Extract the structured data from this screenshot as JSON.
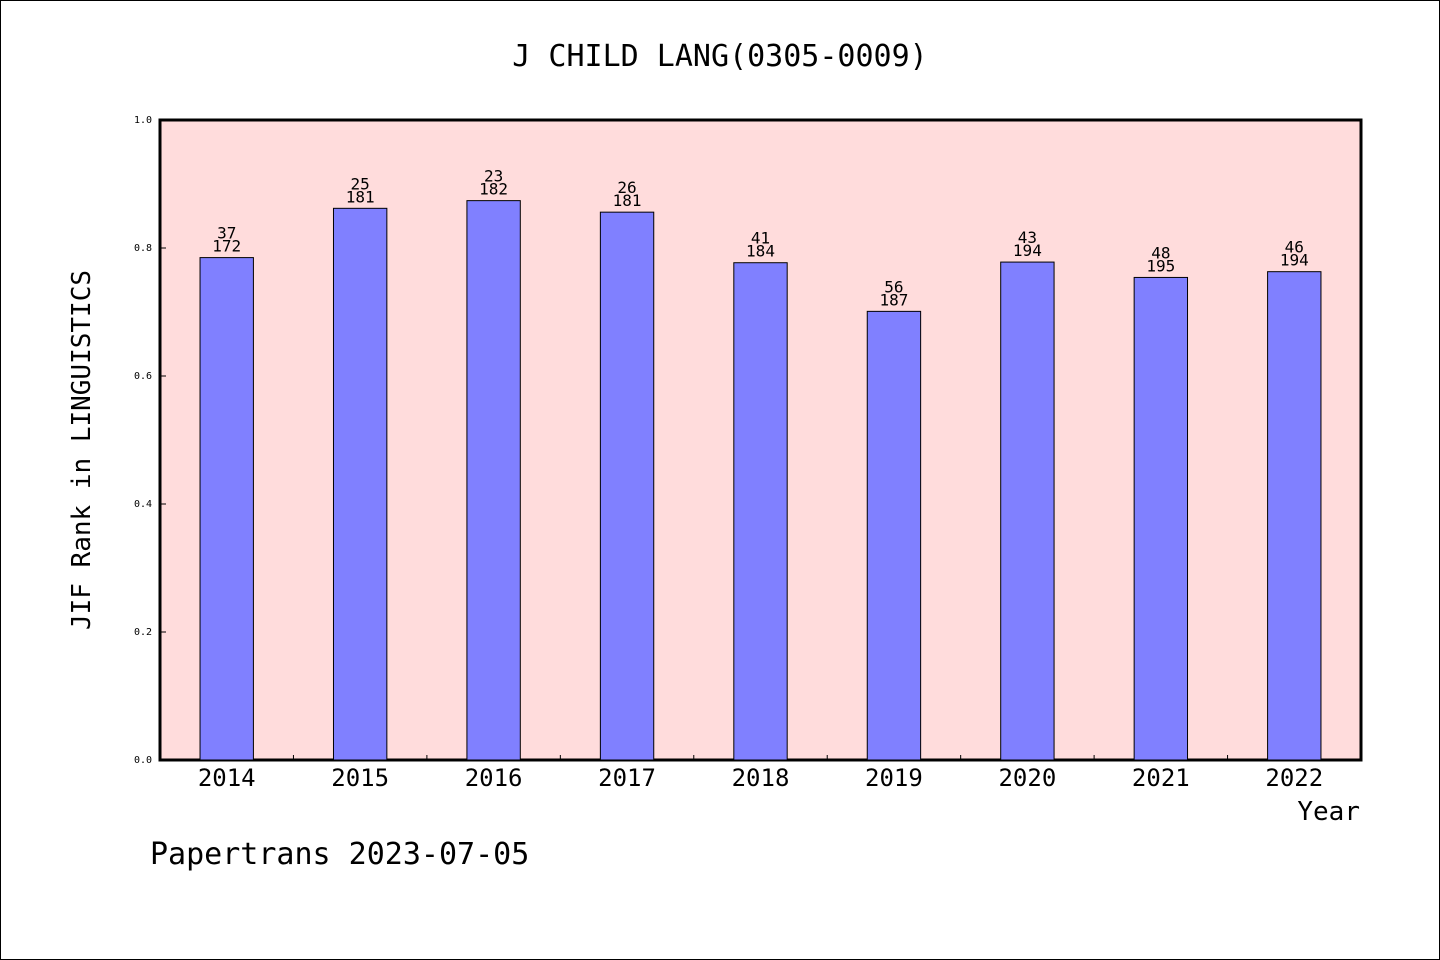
{
  "chart_data": {
    "type": "bar",
    "title": "J CHILD LANG(0305-0009)",
    "xlabel": "Year",
    "ylabel": "JIF Rank in LINGUISTICS",
    "ylim": [
      0,
      1.0
    ],
    "yticks": [
      "0.0",
      "0.2",
      "0.4",
      "0.6",
      "0.8",
      "1.0"
    ],
    "categories": [
      "2014",
      "2015",
      "2016",
      "2017",
      "2018",
      "2019",
      "2020",
      "2021",
      "2022"
    ],
    "values": [
      0.785,
      0.862,
      0.874,
      0.856,
      0.777,
      0.701,
      0.778,
      0.754,
      0.763
    ],
    "rank": [
      "37",
      "25",
      "23",
      "26",
      "41",
      "56",
      "43",
      "48",
      "46"
    ],
    "total": [
      "172",
      "181",
      "182",
      "181",
      "184",
      "187",
      "194",
      "195",
      "194"
    ],
    "plot_background": "#ffdcdc",
    "bar_color": "#8080ff",
    "grid": false
  },
  "footer": {
    "watermark": "Papertrans 2023-07-05"
  }
}
